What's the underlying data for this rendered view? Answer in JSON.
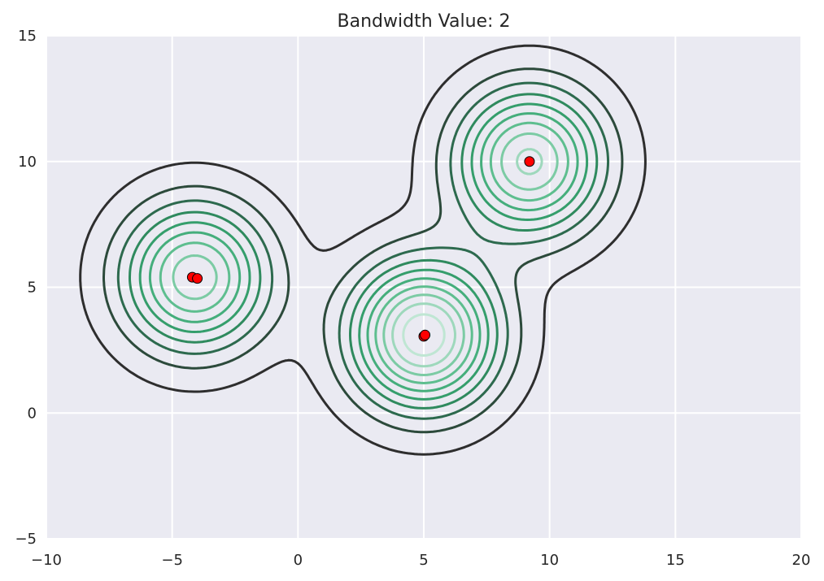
{
  "chart_data": {
    "type": "contour",
    "title": "Bandwidth Value: 2",
    "xlabel": "",
    "ylabel": "",
    "xlim": [
      -10,
      20
    ],
    "ylim": [
      -5,
      15
    ],
    "xticks": [
      -10,
      -5,
      0,
      5,
      10,
      15,
      20
    ],
    "yticks": [
      -5,
      0,
      5,
      10,
      15
    ],
    "grid": true,
    "background": "#EAEAF2",
    "grid_color": "#FFFFFF",
    "point_color": "#FF0000",
    "points": [
      {
        "x": -4.2,
        "y": 5.4
      },
      {
        "x": -4.0,
        "y": 5.35
      },
      {
        "x": 5.0,
        "y": 3.05
      },
      {
        "x": 5.05,
        "y": 3.1
      },
      {
        "x": 9.2,
        "y": 10.0
      }
    ],
    "kde_centers": [
      {
        "x": -4.1,
        "y": 5.4,
        "weight": 0.8
      },
      {
        "x": 5.0,
        "y": 3.1,
        "weight": 1.0
      },
      {
        "x": 9.2,
        "y": 10.0,
        "weight": 0.85
      }
    ],
    "bandwidth": 2,
    "contour_levels": 10,
    "contour_colors": [
      "#2E2E2E",
      "#2C4A3B",
      "#2D6A4E",
      "#2F8A5E",
      "#359E6C",
      "#45AE7C",
      "#5EBE8F",
      "#7CCBA4",
      "#9ED8BC",
      "#BFE6D3"
    ]
  }
}
